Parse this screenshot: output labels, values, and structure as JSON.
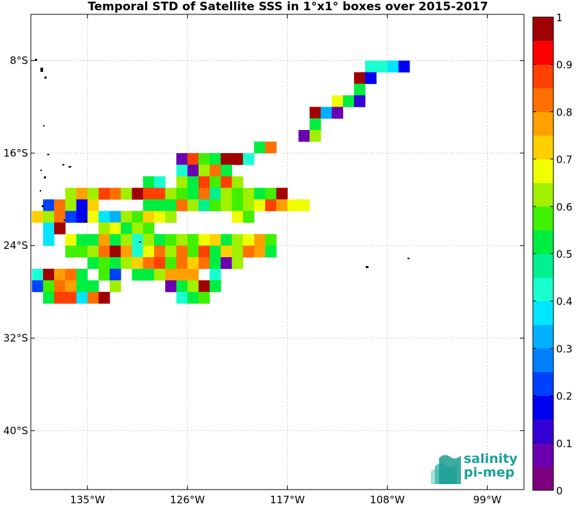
{
  "chart_data": {
    "type": "heatmap",
    "title": "Temporal STD of Satellite SSS in 1°x1° boxes over 2015-2017",
    "x_axis": {
      "label": "",
      "ticks": [
        "135°W",
        "126°W",
        "117°W",
        "108°W",
        "99°W"
      ],
      "tick_lon": [
        -135,
        -126,
        -117,
        -108,
        -99
      ]
    },
    "y_axis": {
      "label": "",
      "ticks": [
        "8°S",
        "16°S",
        "24°S",
        "32°S",
        "40°S"
      ],
      "tick_lat": [
        -8,
        -16,
        -24,
        -32,
        -40
      ]
    },
    "xlim_lon": [
      -140.1,
      -95.7
    ],
    "ylim_lat": [
      -45.1,
      -4.0
    ],
    "grid": true,
    "colorbar": {
      "range": [
        0,
        1
      ],
      "ticks": [
        "0",
        "0.1",
        "0.2",
        "0.3",
        "0.4",
        "0.5",
        "0.6",
        "0.7",
        "0.8",
        "0.9",
        "1"
      ],
      "n_levels": 20,
      "colors": [
        "#7f007f",
        "#6a00b0",
        "#3300d6",
        "#0000f0",
        "#0040ff",
        "#007fff",
        "#00b0ff",
        "#00e6ff",
        "#1affd0",
        "#00f090",
        "#00ee40",
        "#40f000",
        "#a0f000",
        "#f0ff00",
        "#ffd000",
        "#ffa000",
        "#ff7000",
        "#ff4000",
        "#ff0000",
        "#a00000"
      ]
    },
    "cells": [
      [
        -109.5,
        -8.5,
        0.43
      ],
      [
        -108.5,
        -8.5,
        0.43
      ],
      [
        -107.5,
        -8.5,
        0.38
      ],
      [
        -106.5,
        -8.5,
        0.18
      ],
      [
        -110.5,
        -9.5,
        0.97
      ],
      [
        -109.5,
        -9.5,
        0.18
      ],
      [
        -110.5,
        -10.5,
        0.52
      ],
      [
        -112.5,
        -11.5,
        0.68
      ],
      [
        -111.5,
        -11.5,
        0.52
      ],
      [
        -110.5,
        -11.5,
        0.12
      ],
      [
        -114.5,
        -12.5,
        0.97
      ],
      [
        -113.5,
        -12.5,
        0.32
      ],
      [
        -112.5,
        -12.5,
        0.07
      ],
      [
        -114.5,
        -13.5,
        0.52
      ],
      [
        -115.5,
        -14.5,
        0.07
      ],
      [
        -114.5,
        -14.5,
        0.63
      ],
      [
        -119.5,
        -15.5,
        0.52
      ],
      [
        -118.5,
        -15.5,
        0.83
      ],
      [
        -126.5,
        -16.5,
        0.08
      ],
      [
        -125.5,
        -16.5,
        0.88
      ],
      [
        -124.5,
        -16.5,
        0.58
      ],
      [
        -123.5,
        -16.5,
        0.52
      ],
      [
        -122.5,
        -16.5,
        0.97
      ],
      [
        -121.5,
        -16.5,
        0.97
      ],
      [
        -120.5,
        -16.5,
        0.43
      ],
      [
        -126.5,
        -17.5,
        0.43
      ],
      [
        -125.5,
        -17.5,
        0.08
      ],
      [
        -124.5,
        -17.5,
        0.63
      ],
      [
        -123.5,
        -17.5,
        0.83
      ],
      [
        -122.5,
        -17.5,
        0.52
      ],
      [
        -129.5,
        -18.5,
        0.52
      ],
      [
        -128.5,
        -18.5,
        0.43
      ],
      [
        -126.5,
        -18.5,
        0.63
      ],
      [
        -125.5,
        -18.5,
        0.52
      ],
      [
        -124.5,
        -18.5,
        0.88
      ],
      [
        -123.5,
        -18.5,
        0.58
      ],
      [
        -122.5,
        -18.5,
        0.88
      ],
      [
        -121.5,
        -18.5,
        0.63
      ],
      [
        -136.5,
        -19.5,
        0.63
      ],
      [
        -135.5,
        -19.5,
        0.78
      ],
      [
        -134.5,
        -19.5,
        0.63
      ],
      [
        -133.5,
        -19.5,
        0.88
      ],
      [
        -132.5,
        -19.5,
        0.83
      ],
      [
        -131.5,
        -19.5,
        0.63
      ],
      [
        -130.5,
        -19.5,
        0.97
      ],
      [
        -129.5,
        -19.5,
        0.88
      ],
      [
        -128.5,
        -19.5,
        0.88
      ],
      [
        -127.5,
        -19.5,
        0.63
      ],
      [
        -126.5,
        -19.5,
        0.58
      ],
      [
        -125.5,
        -19.5,
        0.52
      ],
      [
        -124.5,
        -19.5,
        0.83
      ],
      [
        -123.5,
        -19.5,
        0.48
      ],
      [
        -122.5,
        -19.5,
        0.63
      ],
      [
        -121.5,
        -19.5,
        0.58
      ],
      [
        -120.5,
        -19.5,
        0.63
      ],
      [
        -119.5,
        -19.5,
        0.52
      ],
      [
        -118.5,
        -19.5,
        0.58
      ],
      [
        -117.5,
        -19.5,
        0.97
      ],
      [
        -138.5,
        -20.5,
        0.23
      ],
      [
        -137.5,
        -20.5,
        0.83
      ],
      [
        -136.5,
        -20.5,
        0.63
      ],
      [
        -135.5,
        -20.5,
        0.18
      ],
      [
        -134.5,
        -20.5,
        0.73
      ],
      [
        -129.5,
        -20.5,
        0.52
      ],
      [
        -128.5,
        -20.5,
        0.52
      ],
      [
        -127.5,
        -20.5,
        0.52
      ],
      [
        -126.5,
        -20.5,
        0.83
      ],
      [
        -125.5,
        -20.5,
        0.63
      ],
      [
        -124.5,
        -20.5,
        0.48
      ],
      [
        -123.5,
        -20.5,
        0.58
      ],
      [
        -122.5,
        -20.5,
        0.63
      ],
      [
        -121.5,
        -20.5,
        0.58
      ],
      [
        -120.5,
        -20.5,
        0.63
      ],
      [
        -119.5,
        -20.5,
        0.68
      ],
      [
        -118.5,
        -20.5,
        0.88
      ],
      [
        -117.5,
        -20.5,
        0.78
      ],
      [
        -116.5,
        -20.5,
        0.68
      ],
      [
        -115.5,
        -20.5,
        0.68
      ],
      [
        -139.5,
        -21.5,
        0.73
      ],
      [
        -138.5,
        -21.5,
        0.63
      ],
      [
        -137.5,
        -21.5,
        0.83
      ],
      [
        -136.5,
        -21.5,
        0.23
      ],
      [
        -135.5,
        -21.5,
        0.18
      ],
      [
        -134.5,
        -21.5,
        0.68
      ],
      [
        -133.5,
        -21.5,
        0.38
      ],
      [
        -132.5,
        -21.5,
        0.33
      ],
      [
        -131.5,
        -21.5,
        0.63
      ],
      [
        -130.5,
        -21.5,
        0.58
      ],
      [
        -129.5,
        -21.5,
        0.73
      ],
      [
        -128.5,
        -21.5,
        0.68
      ],
      [
        -127.5,
        -21.5,
        0.63
      ],
      [
        -121.5,
        -21.5,
        0.68
      ],
      [
        -120.5,
        -21.5,
        0.58
      ],
      [
        -138.5,
        -22.5,
        0.38
      ],
      [
        -137.5,
        -22.5,
        0.97
      ],
      [
        -133.5,
        -22.5,
        0.63
      ],
      [
        -132.5,
        -22.5,
        0.68
      ],
      [
        -131.5,
        -22.5,
        0.52
      ],
      [
        -130.5,
        -22.5,
        0.63
      ],
      [
        -129.5,
        -22.5,
        0.58
      ],
      [
        -138.5,
        -23.5,
        0.38
      ],
      [
        -136.5,
        -23.5,
        0.68
      ],
      [
        -135.5,
        -23.5,
        0.52
      ],
      [
        -134.5,
        -23.5,
        0.52
      ],
      [
        -133.5,
        -23.5,
        0.78
      ],
      [
        -132.5,
        -23.5,
        0.52
      ],
      [
        -131.5,
        -23.5,
        0.63
      ],
      [
        -130.5,
        -23.5,
        0.43
      ],
      [
        -129.5,
        -23.5,
        0.63
      ],
      [
        -128.5,
        -23.5,
        0.52
      ],
      [
        -127.5,
        -23.5,
        0.58
      ],
      [
        -126.5,
        -23.5,
        0.63
      ],
      [
        -125.5,
        -23.5,
        0.58
      ],
      [
        -124.5,
        -23.5,
        0.68
      ],
      [
        -123.5,
        -23.5,
        0.73
      ],
      [
        -122.5,
        -23.5,
        0.52
      ],
      [
        -121.5,
        -23.5,
        0.63
      ],
      [
        -120.5,
        -23.5,
        0.68
      ],
      [
        -119.5,
        -23.5,
        0.78
      ],
      [
        -118.5,
        -23.5,
        0.58
      ],
      [
        -136.5,
        -24.5,
        0.58
      ],
      [
        -135.5,
        -24.5,
        0.58
      ],
      [
        -134.5,
        -24.5,
        0.63
      ],
      [
        -133.5,
        -24.5,
        0.83
      ],
      [
        -132.5,
        -24.5,
        0.97
      ],
      [
        -131.5,
        -24.5,
        0.78
      ],
      [
        -130.5,
        -24.5,
        0.43
      ],
      [
        -129.5,
        -24.5,
        0.68
      ],
      [
        -128.5,
        -24.5,
        0.83
      ],
      [
        -127.5,
        -24.5,
        0.63
      ],
      [
        -126.5,
        -24.5,
        0.83
      ],
      [
        -125.5,
        -24.5,
        0.58
      ],
      [
        -124.5,
        -24.5,
        0.88
      ],
      [
        -123.5,
        -24.5,
        0.52
      ],
      [
        -122.5,
        -24.5,
        0.73
      ],
      [
        -121.5,
        -24.5,
        0.63
      ],
      [
        -120.5,
        -24.5,
        0.83
      ],
      [
        -119.5,
        -24.5,
        0.78
      ],
      [
        -118.5,
        -24.5,
        0.52
      ],
      [
        -134.5,
        -25.5,
        0.52
      ],
      [
        -133.5,
        -25.5,
        0.58
      ],
      [
        -132.5,
        -25.5,
        0.52
      ],
      [
        -131.5,
        -25.5,
        0.63
      ],
      [
        -130.5,
        -25.5,
        0.73
      ],
      [
        -129.5,
        -25.5,
        0.83
      ],
      [
        -128.5,
        -25.5,
        0.88
      ],
      [
        -127.5,
        -25.5,
        0.58
      ],
      [
        -126.5,
        -25.5,
        0.83
      ],
      [
        -125.5,
        -25.5,
        0.73
      ],
      [
        -124.5,
        -25.5,
        0.83
      ],
      [
        -123.5,
        -25.5,
        0.52
      ],
      [
        -122.5,
        -25.5,
        0.08
      ],
      [
        -121.5,
        -25.5,
        0.63
      ],
      [
        -139.5,
        -26.5,
        0.43
      ],
      [
        -138.5,
        -26.5,
        0.97
      ],
      [
        -137.5,
        -26.5,
        0.78
      ],
      [
        -136.5,
        -26.5,
        0.83
      ],
      [
        -135.5,
        -26.5,
        0.52
      ],
      [
        -133.5,
        -26.5,
        0.58
      ],
      [
        -132.5,
        -26.5,
        0.23
      ],
      [
        -130.5,
        -26.5,
        0.52
      ],
      [
        -129.5,
        -26.5,
        0.52
      ],
      [
        -128.5,
        -26.5,
        0.63
      ],
      [
        -127.5,
        -26.5,
        0.78
      ],
      [
        -126.5,
        -26.5,
        0.78
      ],
      [
        -125.5,
        -26.5,
        0.78
      ],
      [
        -123.5,
        -26.5,
        0.43
      ],
      [
        -139.5,
        -27.5,
        0.23
      ],
      [
        -138.5,
        -27.5,
        0.58
      ],
      [
        -137.5,
        -27.5,
        0.83
      ],
      [
        -136.5,
        -27.5,
        0.78
      ],
      [
        -135.5,
        -27.5,
        0.52
      ],
      [
        -134.5,
        -27.5,
        0.52
      ],
      [
        -132.5,
        -27.5,
        0.63
      ],
      [
        -127.5,
        -27.5,
        0.08
      ],
      [
        -126.5,
        -27.5,
        0.52
      ],
      [
        -125.5,
        -27.5,
        0.63
      ],
      [
        -124.5,
        -27.5,
        0.97
      ],
      [
        -123.5,
        -27.5,
        0.52
      ],
      [
        -138.5,
        -28.5,
        0.52
      ],
      [
        -137.5,
        -28.5,
        0.88
      ],
      [
        -136.5,
        -28.5,
        0.88
      ],
      [
        -135.5,
        -28.5,
        0.38
      ],
      [
        -134.5,
        -28.5,
        0.83
      ],
      [
        -133.5,
        -28.5,
        0.97
      ],
      [
        -126.5,
        -28.5,
        0.43
      ],
      [
        -125.5,
        -28.5,
        0.52
      ],
      [
        -124.5,
        -28.5,
        0.58
      ]
    ]
  },
  "logo": {
    "line1": "salinity",
    "line2": "pi-mep"
  }
}
